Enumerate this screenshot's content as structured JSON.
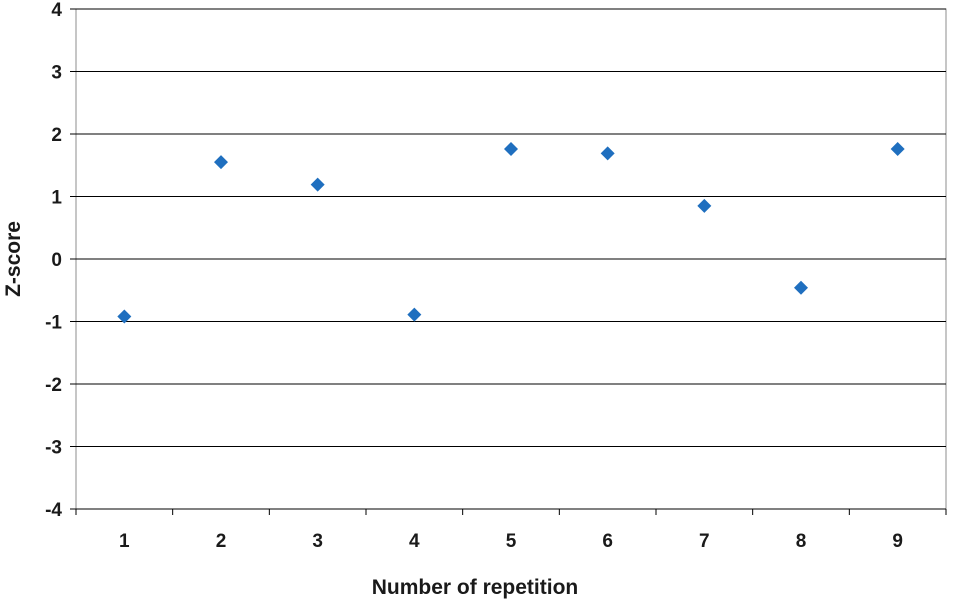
{
  "chart_data": {
    "type": "scatter",
    "title": "",
    "xlabel": "Number of repetition",
    "ylabel": "Z-score",
    "x": [
      1,
      2,
      3,
      4,
      5,
      6,
      7,
      8,
      9
    ],
    "series": [
      {
        "values": [
          -0.92,
          1.55,
          1.19,
          -0.89,
          1.76,
          1.69,
          0.85,
          -0.46,
          1.76
        ]
      }
    ],
    "x_ticks": [
      "1",
      "2",
      "3",
      "4",
      "5",
      "6",
      "7",
      "8",
      "9"
    ],
    "y_ticks": [
      "4",
      "3",
      "2",
      "1",
      "0",
      "-1",
      "-2",
      "-3",
      "-4"
    ],
    "ylim": [
      -4,
      4
    ],
    "xlim": [
      0.5,
      9.5
    ],
    "grid": "horizontal",
    "marker": "diamond",
    "marker_color": "#1f6fbf",
    "gridline_color": "#000000"
  }
}
